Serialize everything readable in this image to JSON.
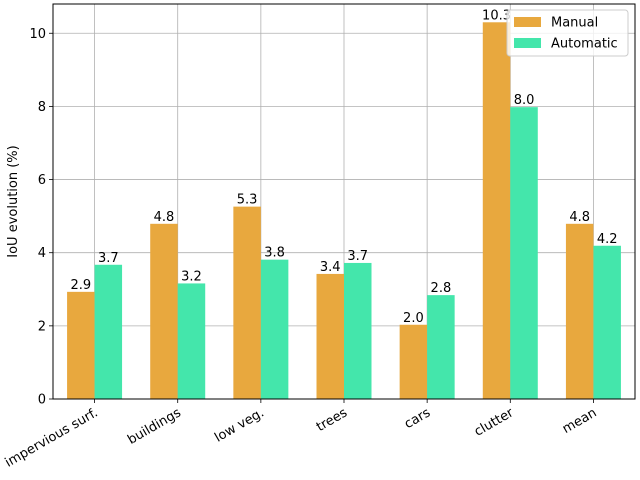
{
  "chart_data": {
    "type": "bar",
    "categories": [
      "impervious surf.",
      "buildings",
      "low veg.",
      "trees",
      "cars",
      "clutter",
      "mean"
    ],
    "series": [
      {
        "name": "Manual",
        "values": [
          2.93,
          4.79,
          5.26,
          3.42,
          2.03,
          10.3,
          4.79
        ],
        "labels": [
          "2.9",
          "4.8",
          "5.3",
          "3.4",
          "2.0",
          "10.3",
          "4.8"
        ],
        "color": "#e8a83e"
      },
      {
        "name": "Automatic",
        "values": [
          3.67,
          3.16,
          3.81,
          3.72,
          2.84,
          7.98,
          4.19
        ],
        "labels": [
          "3.7",
          "3.2",
          "3.8",
          "3.7",
          "2.8",
          "8.0",
          "4.2"
        ],
        "color": "#44e6ab"
      }
    ],
    "title": "",
    "xlabel": "",
    "ylabel": "IoU evolution (%)",
    "ylim": [
      0,
      10.8
    ],
    "yticks": [
      0,
      2,
      4,
      6,
      8,
      10
    ],
    "grid": true,
    "legend_position": "top-right"
  }
}
